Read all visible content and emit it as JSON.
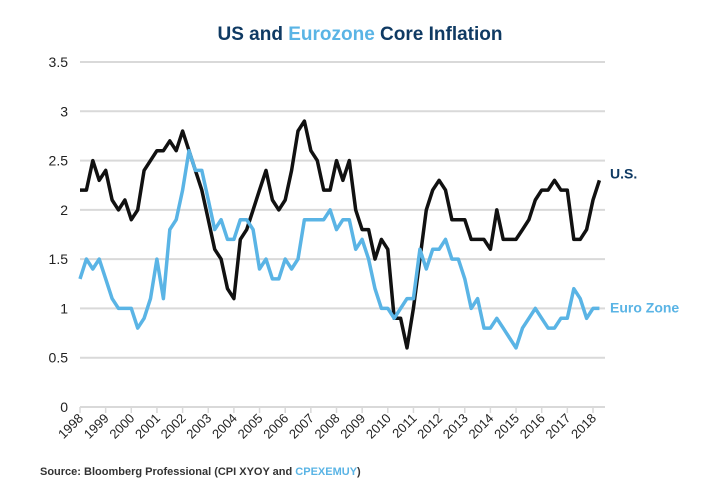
{
  "chart_data": {
    "type": "line",
    "title_parts": [
      "US and ",
      "Eurozone",
      " Core Inflation"
    ],
    "source_parts": [
      "Source: Bloomberg Professional (CPI XYOY and ",
      "CPEXEMUY",
      ")"
    ],
    "xlabel": "",
    "ylabel": "",
    "ylim": [
      0,
      3.5
    ],
    "xlim": [
      1998,
      2018.5
    ],
    "yticks": [
      "0",
      "0.5",
      "1",
      "1.5",
      "2",
      "2.5",
      "3",
      "3.5"
    ],
    "xticks": [
      "1998",
      "1999",
      "2000",
      "2001",
      "2002",
      "2003",
      "2004",
      "2005",
      "2006",
      "2007",
      "2008",
      "2009",
      "2010",
      "2011",
      "2012",
      "2013",
      "2014",
      "2015",
      "2016",
      "2017",
      "2018"
    ],
    "grid": true,
    "x_start": 1998,
    "x_step": 0.25,
    "series": [
      {
        "name": "U.S.",
        "color": "#111111",
        "values": [
          2.2,
          2.2,
          2.5,
          2.3,
          2.4,
          2.1,
          2.0,
          2.1,
          1.9,
          2.0,
          2.4,
          2.5,
          2.6,
          2.6,
          2.7,
          2.6,
          2.8,
          2.6,
          2.4,
          2.2,
          1.9,
          1.6,
          1.5,
          1.2,
          1.1,
          1.7,
          1.8,
          2.0,
          2.2,
          2.4,
          2.1,
          2.0,
          2.1,
          2.4,
          2.8,
          2.9,
          2.6,
          2.5,
          2.2,
          2.2,
          2.5,
          2.3,
          2.5,
          2.0,
          1.8,
          1.8,
          1.5,
          1.7,
          1.6,
          0.9,
          0.9,
          0.6,
          1.0,
          1.5,
          2.0,
          2.2,
          2.3,
          2.2,
          1.9,
          1.9,
          1.9,
          1.7,
          1.7,
          1.7,
          1.6,
          2.0,
          1.7,
          1.7,
          1.7,
          1.8,
          1.9,
          2.1,
          2.2,
          2.2,
          2.3,
          2.2,
          2.2,
          1.7,
          1.7,
          1.8,
          2.1,
          2.3
        ]
      },
      {
        "name": "Euro Zone",
        "color": "#5ab4e5",
        "values": [
          1.3,
          1.5,
          1.4,
          1.5,
          1.3,
          1.1,
          1.0,
          1.0,
          1.0,
          0.8,
          0.9,
          1.1,
          1.5,
          1.1,
          1.8,
          1.9,
          2.2,
          2.6,
          2.4,
          2.4,
          2.1,
          1.8,
          1.9,
          1.7,
          1.7,
          1.9,
          1.9,
          1.8,
          1.4,
          1.5,
          1.3,
          1.3,
          1.5,
          1.4,
          1.5,
          1.9,
          1.9,
          1.9,
          1.9,
          2.0,
          1.8,
          1.9,
          1.9,
          1.6,
          1.7,
          1.5,
          1.2,
          1.0,
          1.0,
          0.9,
          1.0,
          1.1,
          1.1,
          1.6,
          1.4,
          1.6,
          1.6,
          1.7,
          1.5,
          1.5,
          1.3,
          1.0,
          1.1,
          0.8,
          0.8,
          0.9,
          0.8,
          0.7,
          0.6,
          0.8,
          0.9,
          1.0,
          0.9,
          0.8,
          0.8,
          0.9,
          0.9,
          1.2,
          1.1,
          0.9,
          1.0,
          1.0
        ]
      }
    ],
    "legend": "inline-right"
  }
}
